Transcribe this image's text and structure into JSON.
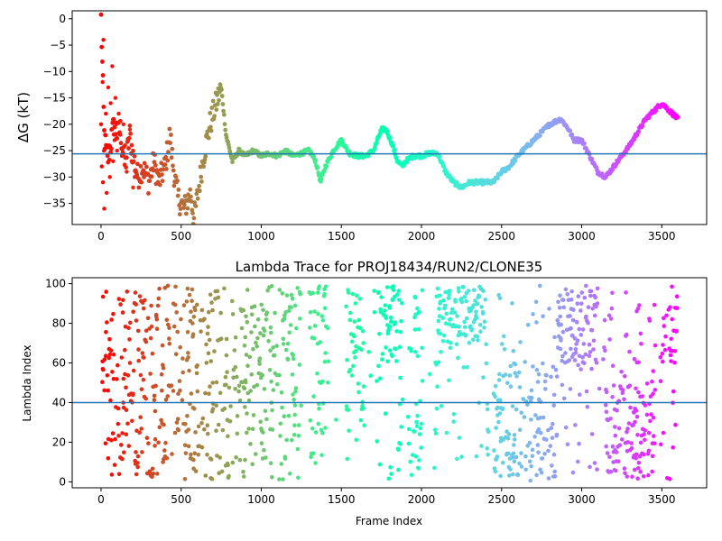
{
  "chart_data": [
    {
      "type": "scatter",
      "title": "",
      "xlabel": "",
      "ylabel": "ΔG (kT)",
      "xlim": [
        -180,
        3780
      ],
      "ylim": [
        -39,
        1.5
      ],
      "xticks": [
        0,
        500,
        1000,
        1500,
        2000,
        2500,
        3000,
        3500
      ],
      "yticks": [
        0,
        -5,
        -10,
        -15,
        -20,
        -25,
        -30,
        -35
      ],
      "hline": -25.6,
      "hline_color": "#1f77b4",
      "colormap": "rainbow (red at start to violet at end)",
      "trace": [
        [
          0,
          0
        ],
        [
          20,
          -22
        ],
        [
          40,
          -27
        ],
        [
          60,
          -24
        ],
        [
          80,
          -20
        ],
        [
          100,
          -22
        ],
        [
          120,
          -21
        ],
        [
          150,
          -28
        ],
        [
          180,
          -22
        ],
        [
          200,
          -26
        ],
        [
          230,
          -30
        ],
        [
          260,
          -28
        ],
        [
          300,
          -31
        ],
        [
          330,
          -27
        ],
        [
          360,
          -31
        ],
        [
          400,
          -28
        ],
        [
          430,
          -22
        ],
        [
          450,
          -28
        ],
        [
          480,
          -34
        ],
        [
          520,
          -36
        ],
        [
          560,
          -33
        ],
        [
          580,
          -38
        ],
        [
          600,
          -34
        ],
        [
          640,
          -26
        ],
        [
          680,
          -20
        ],
        [
          720,
          -16
        ],
        [
          750,
          -13
        ],
        [
          780,
          -22
        ],
        [
          820,
          -27
        ],
        [
          860,
          -25
        ],
        [
          900,
          -26
        ],
        [
          950,
          -25
        ],
        [
          1000,
          -26
        ],
        [
          1050,
          -25.5
        ],
        [
          1100,
          -26
        ],
        [
          1150,
          -25
        ],
        [
          1200,
          -26
        ],
        [
          1250,
          -25.5
        ],
        [
          1300,
          -25
        ],
        [
          1340,
          -27
        ],
        [
          1370,
          -31
        ],
        [
          1400,
          -28
        ],
        [
          1450,
          -25
        ],
        [
          1500,
          -23
        ],
        [
          1550,
          -25.5
        ],
        [
          1600,
          -26
        ],
        [
          1650,
          -26
        ],
        [
          1700,
          -25
        ],
        [
          1750,
          -21
        ],
        [
          1780,
          -21
        ],
        [
          1820,
          -24
        ],
        [
          1850,
          -27
        ],
        [
          1880,
          -28
        ],
        [
          1900,
          -27
        ],
        [
          1950,
          -26
        ],
        [
          2000,
          -26
        ],
        [
          2050,
          -25.5
        ],
        [
          2100,
          -25.5
        ],
        [
          2150,
          -29
        ],
        [
          2200,
          -31
        ],
        [
          2250,
          -32
        ],
        [
          2300,
          -31
        ],
        [
          2350,
          -31
        ],
        [
          2400,
          -31
        ],
        [
          2450,
          -31
        ],
        [
          2500,
          -29
        ],
        [
          2550,
          -28
        ],
        [
          2600,
          -26
        ],
        [
          2700,
          -23
        ],
        [
          2800,
          -20
        ],
        [
          2870,
          -19
        ],
        [
          2920,
          -21
        ],
        [
          2950,
          -23
        ],
        [
          3000,
          -23
        ],
        [
          3050,
          -26
        ],
        [
          3100,
          -29
        ],
        [
          3150,
          -30
        ],
        [
          3200,
          -28
        ],
        [
          3300,
          -24
        ],
        [
          3400,
          -19
        ],
        [
          3500,
          -16
        ],
        [
          3550,
          -17.5
        ],
        [
          3600,
          -19
        ]
      ],
      "scatter_points": [
        [
          0,
          -20
        ],
        [
          5,
          -28
        ],
        [
          10,
          -12
        ],
        [
          12,
          -31
        ],
        [
          15,
          -4
        ],
        [
          18,
          -25
        ],
        [
          20,
          -36
        ],
        [
          25,
          -22
        ],
        [
          30,
          -18
        ],
        [
          35,
          -33
        ],
        [
          40,
          -26
        ],
        [
          45,
          -13
        ],
        [
          50,
          -24
        ],
        [
          55,
          -30
        ],
        [
          60,
          -16
        ],
        [
          65,
          -21
        ],
        [
          70,
          -9
        ],
        [
          75,
          -27
        ],
        [
          80,
          -19
        ],
        [
          85,
          -23
        ],
        [
          90,
          -15
        ],
        [
          95,
          -20
        ],
        [
          100,
          -25
        ],
        [
          110,
          -18
        ],
        [
          120,
          -22
        ],
        [
          130,
          -26
        ],
        [
          140,
          -20
        ],
        [
          150,
          -24
        ],
        [
          160,
          -29
        ],
        [
          170,
          -23
        ],
        [
          180,
          -21
        ],
        [
          190,
          -27
        ],
        [
          200,
          -32
        ],
        [
          210,
          -30
        ]
      ]
    },
    {
      "type": "scatter",
      "title": "Lambda Trace for PROJ18434/RUN2/CLONE35",
      "xlabel": "Frame Index",
      "ylabel": "Lambda Index",
      "xlim": [
        -180,
        3780
      ],
      "ylim": [
        -3,
        103
      ],
      "xticks": [
        0,
        500,
        1000,
        1500,
        2000,
        2500,
        3000,
        3500
      ],
      "yticks": [
        0,
        20,
        40,
        60,
        80,
        100
      ],
      "hline": 40,
      "hline_color": "#1f77b4",
      "colormap": "rainbow (red at start to violet at end)",
      "frames": 3600,
      "value_range": [
        1,
        99
      ],
      "dense_bands": [
        [
          2100,
          2400,
          70,
          99
        ],
        [
          2850,
          3100,
          60,
          99
        ],
        [
          3500,
          3600,
          60,
          99
        ],
        [
          1550,
          1600,
          50,
          85
        ],
        [
          1750,
          1850,
          60,
          99
        ],
        [
          2400,
          2900,
          0,
          60
        ],
        [
          3150,
          3450,
          0,
          50
        ]
      ],
      "gaps": [
        [
          1250,
          1300
        ],
        [
          1420,
          1530
        ],
        [
          1640,
          1720
        ],
        [
          1880,
          1920
        ],
        [
          2010,
          2080
        ],
        [
          2420,
          2450
        ],
        [
          3100,
          3140
        ],
        [
          3460,
          3490
        ]
      ]
    }
  ]
}
